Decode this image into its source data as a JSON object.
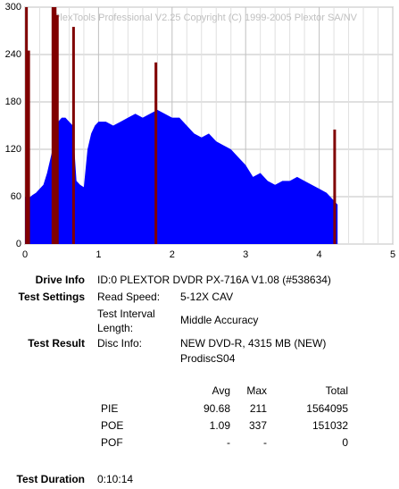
{
  "chart_data": {
    "type": "area",
    "watermark": "PlexTools Professional V2.25 Copyright (C) 1999-2005 Plextor SA/NV",
    "x": [
      0,
      0.05,
      0.1,
      0.15,
      0.2,
      0.25,
      0.3,
      0.35,
      0.4,
      0.45,
      0.5,
      0.55,
      0.6,
      0.65,
      0.7,
      0.75,
      0.8,
      0.85,
      0.9,
      0.95,
      1.0,
      1.1,
      1.2,
      1.3,
      1.4,
      1.5,
      1.6,
      1.7,
      1.8,
      1.9,
      2.0,
      2.1,
      2.2,
      2.3,
      2.4,
      2.5,
      2.6,
      2.7,
      2.8,
      2.9,
      3.0,
      3.1,
      3.2,
      3.3,
      3.4,
      3.5,
      3.6,
      3.7,
      3.8,
      3.9,
      4.0,
      4.1,
      4.2,
      4.25
    ],
    "values": [
      60,
      58,
      62,
      65,
      70,
      75,
      90,
      110,
      130,
      155,
      160,
      160,
      155,
      150,
      80,
      75,
      72,
      120,
      140,
      150,
      155,
      155,
      150,
      155,
      160,
      165,
      160,
      165,
      170,
      165,
      160,
      160,
      150,
      140,
      135,
      140,
      130,
      125,
      120,
      110,
      100,
      85,
      90,
      80,
      75,
      80,
      80,
      85,
      80,
      75,
      70,
      65,
      55,
      50
    ],
    "color": "#0000ff",
    "spikes": {
      "x": [
        0.02,
        0.05,
        0.38,
        0.41,
        0.44,
        0.66,
        1.78,
        4.21
      ],
      "values": [
        300,
        245,
        300,
        300,
        290,
        275,
        230,
        145
      ],
      "color": "#800000"
    },
    "xlim": [
      0,
      5
    ],
    "ylim": [
      0,
      300
    ],
    "xticks": [
      0,
      1,
      2,
      3,
      4,
      5
    ],
    "yticks": [
      0,
      60,
      120,
      180,
      240,
      300
    ],
    "grid": true
  },
  "info": {
    "drive_label": "Drive Info",
    "drive": "ID:0 PLEXTOR DVDR PX-716A V1.08 (#538634)",
    "settings_label": "Test Settings",
    "read_speed_label": "Read Speed:",
    "read_speed": "5-12X CAV",
    "interval_label": [
      "Test Interval",
      "Length:"
    ],
    "interval": "Middle Accuracy",
    "result_label": "Test Result",
    "disc_label": "Disc Info:",
    "disc": [
      "NEW DVD-R, 4315 MB (NEW)",
      "ProdiscS04"
    ],
    "duration_label": "Test Duration",
    "duration": "0:10:14"
  },
  "table": {
    "header": [
      "Avg",
      "Max",
      "Total"
    ],
    "rows": [
      [
        "PIE",
        "90.68",
        "211",
        "1564095"
      ],
      [
        "POE",
        "1.09",
        "337",
        "151032"
      ],
      [
        "POF",
        "-",
        "-",
        "0"
      ]
    ]
  }
}
